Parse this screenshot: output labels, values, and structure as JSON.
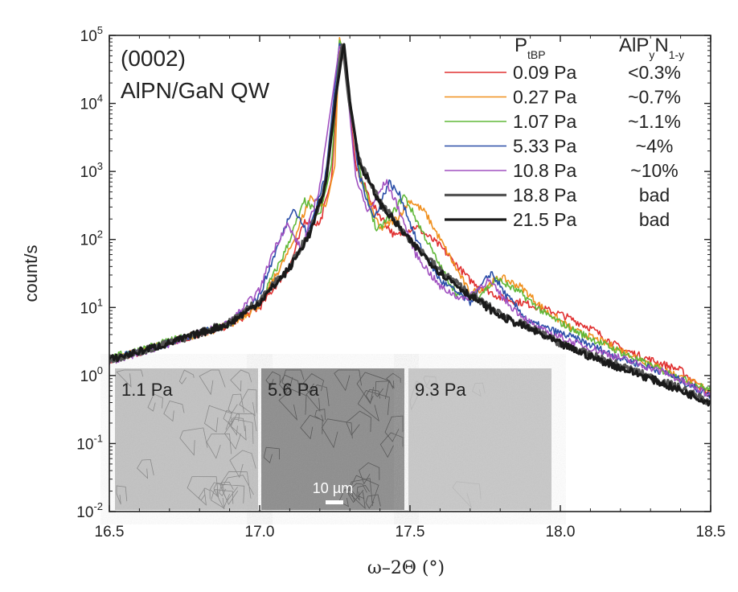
{
  "chart_data": {
    "type": "line",
    "title": "(0002)",
    "subtitle": "AlPN/GaN QW",
    "xlabel": "ω–2Θ  (°)",
    "ylabel": "count/s",
    "xlim": [
      16.5,
      18.5
    ],
    "ylim_log10": [
      -2,
      5
    ],
    "yscale": "log",
    "grid": false,
    "legend_placement": "top-right",
    "x_ticks": [
      "16.5",
      "17.0",
      "17.5",
      "18.0",
      "18.5"
    ],
    "y_ticks": [
      {
        "base": "10",
        "exp": "-2"
      },
      {
        "base": "10",
        "exp": "-1"
      },
      {
        "base": "10",
        "exp": "0"
      },
      {
        "base": "10",
        "exp": "1"
      },
      {
        "base": "10",
        "exp": "2"
      },
      {
        "base": "10",
        "exp": "3"
      },
      {
        "base": "10",
        "exp": "4"
      },
      {
        "base": "10",
        "exp": "5"
      }
    ],
    "legend_header": {
      "p_main": "P",
      "p_sub": "tBP",
      "c_main": "AlP",
      "c_sub1": "y",
      "c_mid": "N",
      "c_sub2": "1-y"
    },
    "series": [
      {
        "name": "0.09 Pa",
        "composition": "<0.3%",
        "color": "#e03030",
        "width": 1.6,
        "points": [
          [
            16.5,
            1.6
          ],
          [
            16.7,
            3.0
          ],
          [
            16.9,
            5.5
          ],
          [
            17.0,
            10
          ],
          [
            17.1,
            40
          ],
          [
            17.15,
            190
          ],
          [
            17.2,
            170
          ],
          [
            17.24,
            800
          ],
          [
            17.265,
            60000
          ],
          [
            17.28,
            45000
          ],
          [
            17.32,
            1200
          ],
          [
            17.38,
            300
          ],
          [
            17.45,
            110
          ],
          [
            17.52,
            155
          ],
          [
            17.6,
            80
          ],
          [
            17.7,
            25
          ],
          [
            17.8,
            14
          ],
          [
            17.9,
            11
          ],
          [
            18.0,
            8
          ],
          [
            18.1,
            5
          ],
          [
            18.2,
            2.5
          ],
          [
            18.3,
            1.7
          ],
          [
            18.4,
            1.2
          ],
          [
            18.5,
            0.5
          ]
        ]
      },
      {
        "name": "0.27 Pa",
        "composition": "~0.7%",
        "color": "#f0901e",
        "width": 1.6,
        "points": [
          [
            16.5,
            1.7
          ],
          [
            16.7,
            3.1
          ],
          [
            16.9,
            5.4
          ],
          [
            17.0,
            11
          ],
          [
            17.1,
            70
          ],
          [
            17.17,
            430
          ],
          [
            17.22,
            300
          ],
          [
            17.25,
            1200
          ],
          [
            17.265,
            92000
          ],
          [
            17.28,
            50000
          ],
          [
            17.33,
            900
          ],
          [
            17.4,
            140
          ],
          [
            17.46,
            210
          ],
          [
            17.5,
            380
          ],
          [
            17.55,
            250
          ],
          [
            17.62,
            70
          ],
          [
            17.7,
            16
          ],
          [
            17.75,
            20
          ],
          [
            17.8,
            28
          ],
          [
            17.87,
            20
          ],
          [
            17.95,
            9
          ],
          [
            18.05,
            4.5
          ],
          [
            18.15,
            3
          ],
          [
            18.3,
            1.5
          ],
          [
            18.5,
            0.6
          ]
        ]
      },
      {
        "name": "1.07 Pa",
        "composition": "~1.1%",
        "color": "#60b838",
        "width": 1.6,
        "points": [
          [
            16.5,
            1.8
          ],
          [
            16.7,
            3.2
          ],
          [
            16.9,
            5.6
          ],
          [
            17.0,
            12
          ],
          [
            17.08,
            60
          ],
          [
            17.15,
            370
          ],
          [
            17.2,
            220
          ],
          [
            17.24,
            1300
          ],
          [
            17.265,
            88000
          ],
          [
            17.28,
            55000
          ],
          [
            17.33,
            1100
          ],
          [
            17.39,
            130
          ],
          [
            17.45,
            270
          ],
          [
            17.48,
            450
          ],
          [
            17.52,
            200
          ],
          [
            17.6,
            40
          ],
          [
            17.66,
            15
          ],
          [
            17.72,
            14
          ],
          [
            17.79,
            26
          ],
          [
            17.87,
            16
          ],
          [
            17.95,
            8
          ],
          [
            18.05,
            4.5
          ],
          [
            18.15,
            2.8
          ],
          [
            18.3,
            1.4
          ],
          [
            18.5,
            0.6
          ]
        ]
      },
      {
        "name": "5.33 Pa",
        "composition": "~4%",
        "color": "#2a4ea8",
        "width": 1.6,
        "points": [
          [
            16.5,
            1.7
          ],
          [
            16.7,
            3.0
          ],
          [
            16.9,
            5.8
          ],
          [
            17.0,
            15
          ],
          [
            17.06,
            80
          ],
          [
            17.11,
            300
          ],
          [
            17.16,
            120
          ],
          [
            17.22,
            900
          ],
          [
            17.265,
            76000
          ],
          [
            17.28,
            60000
          ],
          [
            17.33,
            900
          ],
          [
            17.38,
            200
          ],
          [
            17.43,
            700
          ],
          [
            17.47,
            420
          ],
          [
            17.52,
            100
          ],
          [
            17.6,
            25
          ],
          [
            17.7,
            12
          ],
          [
            17.77,
            33
          ],
          [
            17.82,
            15
          ],
          [
            17.9,
            6
          ],
          [
            18.05,
            3.5
          ],
          [
            18.2,
            1.8
          ],
          [
            18.35,
            1.1
          ],
          [
            18.5,
            0.5
          ]
        ]
      },
      {
        "name": "10.8 Pa",
        "composition": "~10%",
        "color": "#a050c0",
        "width": 1.6,
        "points": [
          [
            16.5,
            1.6
          ],
          [
            16.7,
            2.9
          ],
          [
            16.9,
            6.0
          ],
          [
            17.0,
            18
          ],
          [
            17.04,
            60
          ],
          [
            17.09,
            170
          ],
          [
            17.14,
            70
          ],
          [
            17.2,
            600
          ],
          [
            17.265,
            68000
          ],
          [
            17.28,
            55000
          ],
          [
            17.32,
            800
          ],
          [
            17.36,
            250
          ],
          [
            17.42,
            720
          ],
          [
            17.46,
            300
          ],
          [
            17.52,
            60
          ],
          [
            17.6,
            20
          ],
          [
            17.68,
            13
          ],
          [
            17.76,
            25
          ],
          [
            17.83,
            11
          ],
          [
            17.92,
            5
          ],
          [
            18.05,
            3.0
          ],
          [
            18.2,
            1.8
          ],
          [
            18.35,
            1.1
          ],
          [
            18.5,
            0.5
          ]
        ]
      },
      {
        "name": "18.8 Pa",
        "composition": "bad",
        "color": "#555555",
        "width": 3.2,
        "points": [
          [
            16.5,
            1.7
          ],
          [
            16.7,
            3.0
          ],
          [
            16.9,
            6.0
          ],
          [
            17.0,
            13
          ],
          [
            17.1,
            40
          ],
          [
            17.17,
            140
          ],
          [
            17.22,
            700
          ],
          [
            17.255,
            15000
          ],
          [
            17.275,
            85000
          ],
          [
            17.295,
            12000
          ],
          [
            17.33,
            1500
          ],
          [
            17.4,
            350
          ],
          [
            17.5,
            100
          ],
          [
            17.6,
            35
          ],
          [
            17.7,
            16
          ],
          [
            17.8,
            8
          ],
          [
            17.9,
            5
          ],
          [
            18.0,
            3.0
          ],
          [
            18.1,
            2.0
          ],
          [
            18.2,
            1.4
          ],
          [
            18.3,
            0.95
          ],
          [
            18.4,
            0.65
          ],
          [
            18.5,
            0.4
          ]
        ]
      },
      {
        "name": "21.5 Pa",
        "composition": "bad",
        "color": "#1a1a1a",
        "width": 3.2,
        "points": [
          [
            16.5,
            1.7
          ],
          [
            16.7,
            3.0
          ],
          [
            16.9,
            5.8
          ],
          [
            17.0,
            12
          ],
          [
            17.1,
            38
          ],
          [
            17.17,
            130
          ],
          [
            17.22,
            650
          ],
          [
            17.255,
            14000
          ],
          [
            17.28,
            80000
          ],
          [
            17.3,
            11000
          ],
          [
            17.33,
            1400
          ],
          [
            17.4,
            340
          ],
          [
            17.5,
            95
          ],
          [
            17.6,
            33
          ],
          [
            17.7,
            15
          ],
          [
            17.8,
            7.5
          ],
          [
            17.9,
            4.8
          ],
          [
            18.0,
            2.9
          ],
          [
            18.1,
            1.9
          ],
          [
            18.2,
            1.3
          ],
          [
            18.3,
            0.9
          ],
          [
            18.4,
            0.6
          ],
          [
            18.5,
            0.4
          ]
        ]
      }
    ],
    "insets": [
      {
        "label": "1.1 Pa",
        "bg": "#c2c2c2",
        "net": "#8a8a8a"
      },
      {
        "label": "5.6 Pa",
        "bg": "#8c8c8c",
        "net": "#5a5a5a"
      },
      {
        "label": "9.3 Pa",
        "bg": "#c8c8c8",
        "net": "#b8b8b8"
      }
    ],
    "scale_bar_label": "10 µm"
  }
}
